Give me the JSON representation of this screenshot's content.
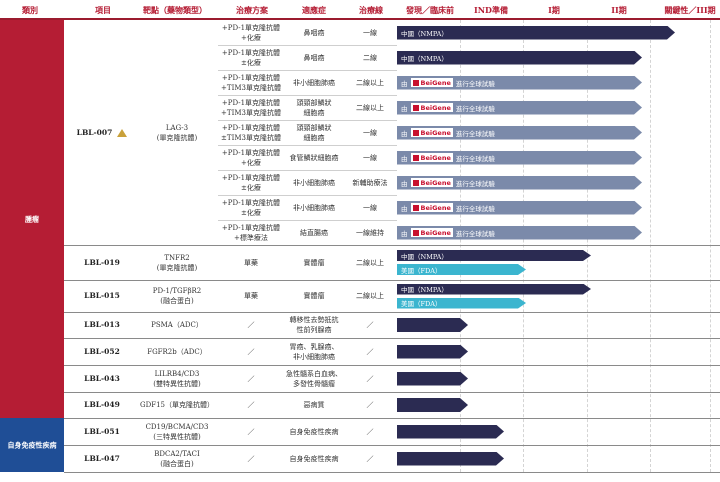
{
  "columns": [
    "類別",
    "項目",
    "靶點（藥物類型）",
    "治療方案",
    "適應症",
    "治療線",
    "發現／臨床前",
    "IND準備",
    "I期",
    "II期",
    "關鍵性／III期"
  ],
  "groups": [
    {
      "label": "腫瘤",
      "color": "#b51d34"
    },
    {
      "label": "自身免疫性疾病",
      "color": "#1f4e96"
    }
  ],
  "triangle_marker": "warning-triangle",
  "bar_colors": {
    "navy": "#2b2b52",
    "slate": "#7b8aaa",
    "teal": "#3bb5cf"
  },
  "brand": {
    "name": "BeiGene",
    "pre": "由",
    "post": "進行全球試驗"
  },
  "rows": [
    {
      "code": "LBL-007",
      "target": "LAG-3\n(單克隆抗體)",
      "regimen": "+PD-1單克隆抗體\n+化療",
      "indication": "鼻咽癌",
      "line": "一線",
      "bars": [
        {
          "label": "中國（NMPA）",
          "color": "navy",
          "progress": 0.86
        }
      ]
    },
    {
      "regimen": "+PD-1單克隆抗體\n±化療",
      "indication": "鼻咽癌",
      "line": "二線",
      "bars": [
        {
          "label": "中國（NMPA）",
          "color": "navy",
          "progress": 0.76
        }
      ]
    },
    {
      "regimen": "+PD-1單克隆抗體\n+TIM3單克隆抗體",
      "indication": "非小細胞肺癌",
      "line": "二線以上",
      "bars": [
        {
          "label": "",
          "color": "slate",
          "progress": 0.76,
          "brand": true
        }
      ]
    },
    {
      "regimen": "+PD-1單克隆抗體\n+TIM3單克隆抗體",
      "indication": "頭頸部鱗狀\n細胞癌",
      "line": "二線以上",
      "bars": [
        {
          "label": "",
          "color": "slate",
          "progress": 0.76,
          "brand": true
        }
      ]
    },
    {
      "regimen": "+PD-1單克隆抗體\n±TIM3單克隆抗體",
      "indication": "頭頸部鱗狀\n細胞癌",
      "line": "一線",
      "bars": [
        {
          "label": "",
          "color": "slate",
          "progress": 0.76,
          "brand": true
        }
      ]
    },
    {
      "regimen": "+PD-1單克隆抗體\n+化療",
      "indication": "食管鱗狀細胞癌",
      "line": "一線",
      "bars": [
        {
          "label": "",
          "color": "slate",
          "progress": 0.76,
          "brand": true
        }
      ]
    },
    {
      "regimen": "+PD-1單克隆抗體\n±化療",
      "indication": "非小細胞肺癌",
      "line": "新輔助療法",
      "bars": [
        {
          "label": "",
          "color": "slate",
          "progress": 0.76,
          "brand": true
        }
      ]
    },
    {
      "regimen": "+PD-1單克隆抗體\n±化療",
      "indication": "非小細胞肺癌",
      "line": "一線",
      "bars": [
        {
          "label": "",
          "color": "slate",
          "progress": 0.76,
          "brand": true
        }
      ]
    },
    {
      "regimen": "+PD-1單克隆抗體\n+標準療法",
      "indication": "結直腸癌",
      "line": "一線維持",
      "bars": [
        {
          "label": "",
          "color": "slate",
          "progress": 0.76,
          "brand": true
        }
      ]
    },
    {
      "code": "LBL-019",
      "target": "TNFR2\n(單克隆抗體)",
      "regimen": "單藥",
      "indication": "實體瘤",
      "line": "二線以上",
      "bars": [
        {
          "label": "中國（NMPA）",
          "color": "navy",
          "progress": 0.6
        },
        {
          "label": "美國（FDA）",
          "color": "teal",
          "progress": 0.4
        }
      ]
    },
    {
      "code": "LBL-015",
      "target": "PD-1/TGFβR2\n(融合蛋白)",
      "regimen": "單藥",
      "indication": "實體瘤",
      "line": "二線以上",
      "bars": [
        {
          "label": "中國（NMPA）",
          "color": "navy",
          "progress": 0.6
        },
        {
          "label": "美國（FDA）",
          "color": "teal",
          "progress": 0.4
        }
      ]
    },
    {
      "code": "LBL-013",
      "target": "PSMA（ADC）",
      "regimen": "／",
      "indication": "轉移性去勢抵抗\n性前列腺癌",
      "line": "／",
      "bars": [
        {
          "label": "",
          "color": "navy",
          "progress": 0.22
        }
      ]
    },
    {
      "code": "LBL-052",
      "target": "FGFR2b（ADC）",
      "regimen": "／",
      "indication": "胃癌、乳腺癌、\n非小細胞肺癌",
      "line": "／",
      "bars": [
        {
          "label": "",
          "color": "navy",
          "progress": 0.22
        }
      ]
    },
    {
      "code": "LBL-043",
      "target": "LILRB4/CD3\n(雙特異性抗體)",
      "regimen": "／",
      "indication": "急性髓系白血病、\n多發性骨髓瘤",
      "line": "／",
      "bars": [
        {
          "label": "",
          "color": "navy",
          "progress": 0.22
        }
      ]
    },
    {
      "code": "LBL-049",
      "target": "GDF15（單克隆抗體）",
      "regimen": "／",
      "indication": "惡病質",
      "line": "／",
      "bars": [
        {
          "label": "",
          "color": "navy",
          "progress": 0.22
        }
      ]
    },
    {
      "code": "LBL-051",
      "target": "CD19/BCMA/CD3\n(三特異性抗體)",
      "regimen": "／",
      "indication": "自身免疫性疾病",
      "line": "／",
      "bars": [
        {
          "label": "",
          "color": "navy",
          "progress": 0.33
        }
      ]
    },
    {
      "code": "LBL-047",
      "target": "BDCA2/TACI\n(融合蛋白)",
      "regimen": "／",
      "indication": "自身免疫性疾病",
      "line": "／",
      "bars": [
        {
          "label": "",
          "color": "navy",
          "progress": 0.33
        }
      ]
    }
  ]
}
